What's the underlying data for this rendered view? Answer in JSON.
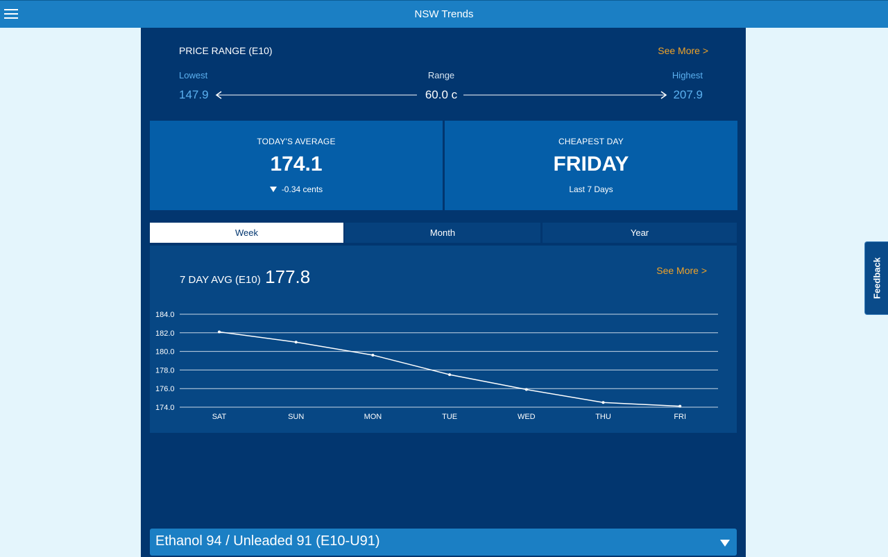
{
  "app": {
    "title": "NSW Trends",
    "menu_icon": "hamburger-menu-icon"
  },
  "price_range": {
    "title": "PRICE RANGE (E10)",
    "see_more": "See More >",
    "lowest_label": "Lowest",
    "range_label": "Range",
    "highest_label": "Highest",
    "lowest_value": "147.9",
    "range_value": "60.0 c",
    "highest_value": "207.9"
  },
  "todays_average": {
    "label": "TODAY'S AVERAGE",
    "value": "174.1",
    "change": "-0.34 cents",
    "change_icon": "triangle-down-icon"
  },
  "cheapest_day": {
    "label": "CHEAPEST DAY",
    "value": "FRIDAY",
    "sub": "Last 7 Days"
  },
  "tabs": [
    {
      "label": "Week",
      "active": true
    },
    {
      "label": "Month",
      "active": false
    },
    {
      "label": "Year",
      "active": false
    }
  ],
  "chart_panel": {
    "avg_label": "7 DAY AVG (E10)",
    "avg_value": "177.8",
    "see_more": "See More >"
  },
  "chart_data": {
    "type": "line",
    "categories": [
      "SAT",
      "SUN",
      "MON",
      "TUE",
      "WED",
      "THU",
      "FRI"
    ],
    "series": [
      {
        "values": [
          182.1,
          181.0,
          179.6,
          177.5,
          175.9,
          174.5,
          174.1
        ]
      }
    ],
    "ylim": [
      174.0,
      184.0
    ],
    "yticks": [
      "184.0",
      "182.0",
      "180.0",
      "178.0",
      "176.0",
      "174.0"
    ],
    "grid": true,
    "line_color": "#ffffff"
  },
  "fuel_selector": {
    "label": "Ethanol 94 / Unleaded 91 (E10-U91)",
    "caret_icon": "caret-down-icon"
  },
  "feedback": {
    "label": "Feedback"
  },
  "colors": {
    "header": "#1b7fc4",
    "panel": "#02366f",
    "card": "#055ea8",
    "accent": "#f0a328",
    "link_blue": "#5bb0ef"
  }
}
